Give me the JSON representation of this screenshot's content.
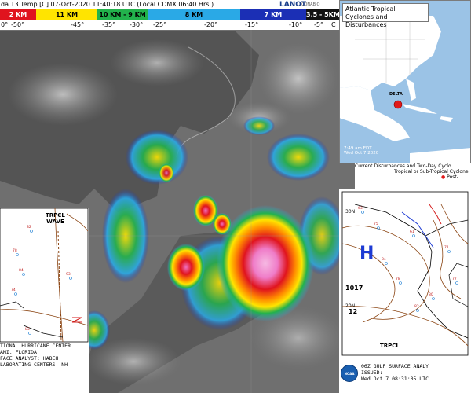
{
  "satellite": {
    "header_title": "da 13 Temp.[C] 07-Oct-2020 11:40:18 UTC (Local CDMX  06:40 Hrs.)",
    "logo_text": "LANOT",
    "logo_sub": "CONABIO",
    "scale_segments": [
      {
        "label": "2 KM",
        "color": "#e0141e",
        "text_color": "#ffffff"
      },
      {
        "label": "11 KM",
        "color": "#ffe400",
        "text_color": "#000000"
      },
      {
        "label": "10 KM - 9 KM",
        "color": "#22b24c",
        "text_color": "#000000"
      },
      {
        "label": "8 KM",
        "color": "#2aa9e6",
        "text_color": "#000000"
      },
      {
        "label": "7 KM",
        "color": "#1b2fb5",
        "text_color": "#ffffff"
      },
      {
        "label": "3.5 - 5KM",
        "color": "#111111",
        "text_color": "#ffffff"
      }
    ],
    "temp_ticks": [
      "0°",
      "-50°",
      "-45°",
      "-35°",
      "-30°",
      "-25°",
      "-20°",
      "-15°",
      "-10°",
      "-5°",
      "C"
    ]
  },
  "atlantic_map": {
    "title": "Atlantic Tropical Cyclones and Disturbances",
    "storm_label": "DELTA",
    "date_line1": "7:49 am EDT",
    "date_line2": "Wed Oct 7 2020",
    "sub_line1": "Current Disturbances and Two-Day Cyclo",
    "sub_line2": "Tropical or Sub-Tropical Cyclone",
    "sub_line3": "Post-"
  },
  "surface_right": {
    "lat_30": "30N",
    "lat_20": "20N",
    "high_label": "H",
    "pressure_1017": "1017",
    "pressure_12": "12",
    "trpcl": "TRPCL",
    "footer_line1": "06Z GULF SURFACE ANALY",
    "footer_line2": "ISSUED:",
    "footer_line3": "Wed Oct 7 08:31:05 UTC",
    "noaa": "NOAA"
  },
  "surface_left": {
    "wave_label_1": "TRPCL",
    "wave_label_2": "WAVE",
    "footer_line1": "TIONAL HURRICANE CENTER",
    "footer_line2": "AMI, FLORIDA",
    "footer_line3": "FACE ANALYST: HABEH",
    "footer_line4": "LABORATING CENTERS: NH"
  }
}
